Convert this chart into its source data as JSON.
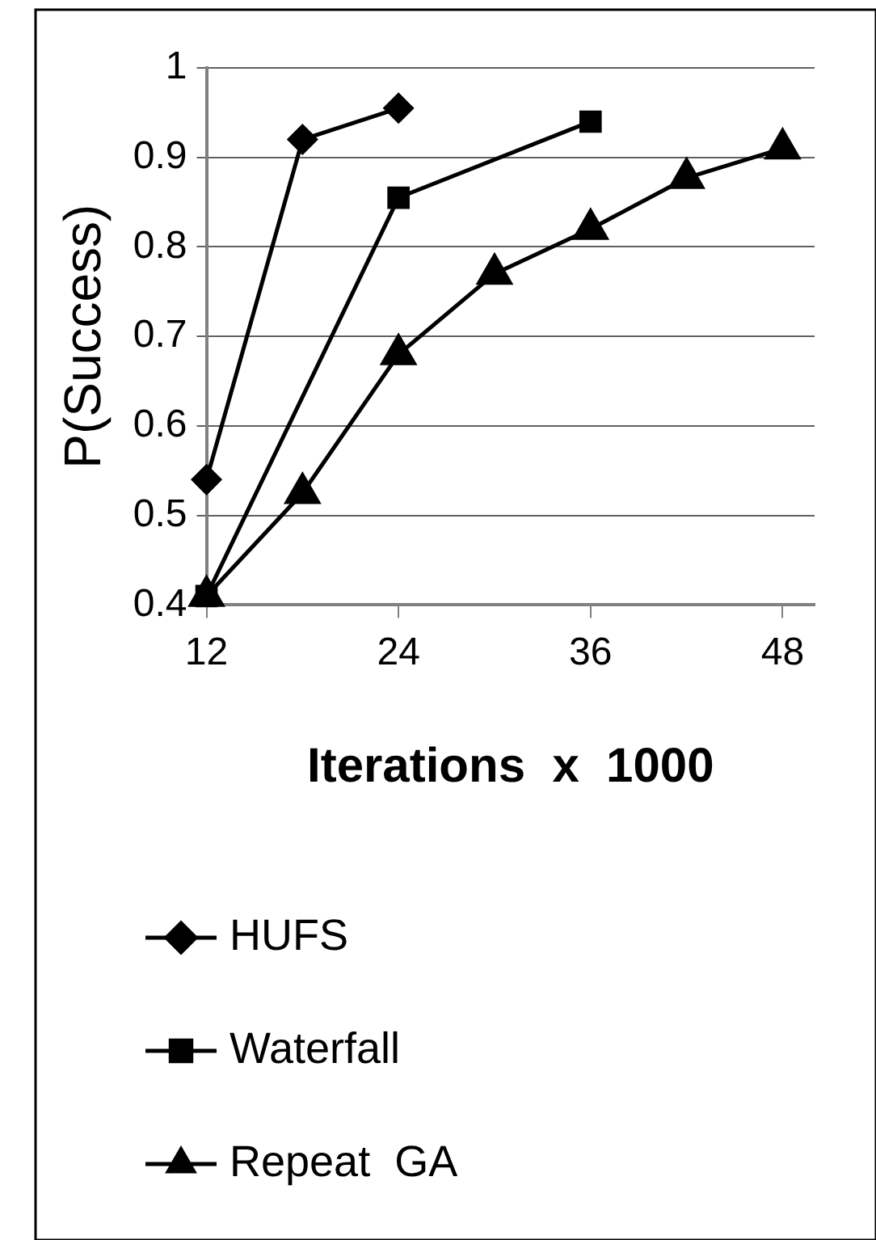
{
  "chart_data": {
    "type": "line",
    "ylabel": "P(Success)",
    "xlabel": "Iterations  x  1000",
    "xlim": [
      12,
      50
    ],
    "xticks": [
      12,
      24,
      36,
      48
    ],
    "ylim": [
      0.4,
      1
    ],
    "yticks": [
      0.4,
      0.5,
      0.6,
      0.7,
      0.8,
      0.9,
      1
    ],
    "grid": "y",
    "legend": "bottom",
    "line_style": "solid",
    "series": [
      {
        "name": "HUFS",
        "color": "#000000",
        "marker": "diamond",
        "x": [
          12,
          18,
          24
        ],
        "values": [
          0.54,
          0.92,
          0.955
        ]
      },
      {
        "name": "Waterfall",
        "color": "#000000",
        "marker": "square",
        "x": [
          12,
          24,
          36
        ],
        "values": [
          0.41,
          0.855,
          0.94
        ]
      },
      {
        "name": "Repeat  GA",
        "color": "#000000",
        "marker": "triangle",
        "x": [
          12,
          18,
          24,
          30,
          36,
          42,
          48
        ],
        "values": [
          0.41,
          0.525,
          0.68,
          0.77,
          0.82,
          0.877,
          0.91
        ]
      }
    ]
  }
}
